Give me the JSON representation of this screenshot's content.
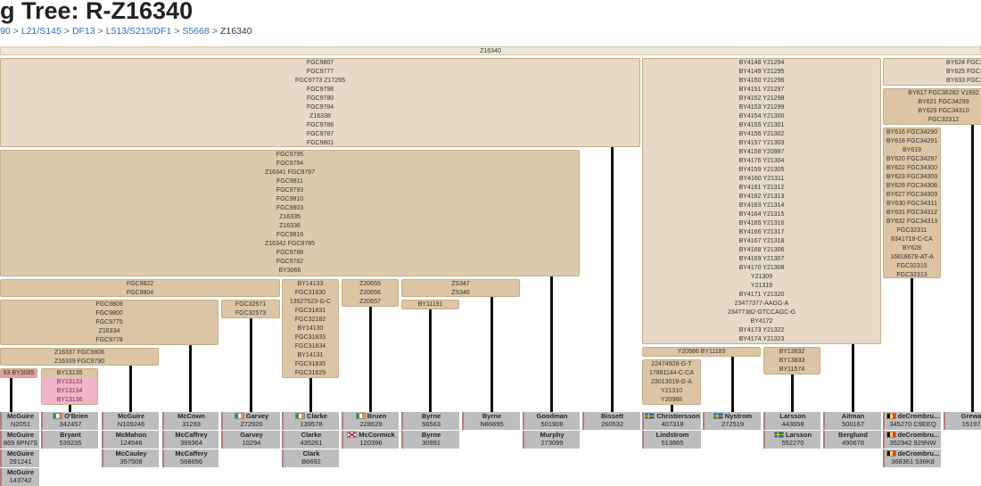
{
  "header": {
    "title": "g Tree: R-Z16340",
    "breadcrumb": [
      "90",
      "L21/S145",
      "DF13",
      "L513/S215/DF1",
      "S5668"
    ],
    "separator": ">",
    "current": "Z16340"
  },
  "tree": {
    "root": "Z16340",
    "nodes": [
      {
        "snps": [
          "FGC9807",
          "FGC9777",
          "FGC9773 Z17265",
          "FGC9798",
          "FGC9780",
          "FGC9784",
          "Z16338",
          "FGC9786",
          "FGC9787",
          "FGC9801"
        ]
      },
      {
        "snps": [
          "FGC9795",
          "FGC9794",
          "Z16341 FGC9797",
          "FGC9811",
          "FGC9793",
          "FGC9810",
          "FGC9803",
          "Z16335",
          "Z16336",
          "FGC9816",
          "Z16342 FGC9785",
          "FGC9788",
          "FGC9782",
          "BY3066"
        ]
      },
      {
        "snps": [
          "FGC9822",
          "FGC9804"
        ]
      },
      {
        "snps": [
          "FGC9809",
          "FGC9800",
          "FGC9775",
          "Z16334",
          "FGC9778"
        ]
      },
      {
        "snps": [
          "Z16337 FGC9808",
          "Z16339 FGC9790"
        ]
      },
      {
        "snps": [
          "93 BY3085"
        ]
      },
      {
        "snps": [
          "BY13135",
          "BY13133",
          "BY13134",
          "BY13136"
        ]
      },
      {
        "snps": [
          "FGC32571",
          "FGC32573"
        ]
      },
      {
        "snps": [
          "BY14133",
          "FGC31830",
          "13527523-G-C",
          "FGC31831",
          "FGC32182",
          "BY14130",
          "FGC31833",
          "FGC31834",
          "BY14131",
          "FGC31835",
          "FGC31829"
        ]
      },
      {
        "snps": [
          "Z20655",
          "Z20656",
          "Z20657"
        ]
      },
      {
        "snps": [
          "ZS347",
          "ZS346"
        ]
      },
      {
        "snps": [
          "BY11191"
        ]
      },
      {
        "snps": [
          "BY4148 Y21294",
          "BY4149 Y21295",
          "BY4150 Y21296",
          "BY4151 Y21297",
          "BY4152 Y21298",
          "BY4153 Y21299",
          "BY4154 Y21300",
          "BY4155 Y21301",
          "BY4156 Y21302",
          "BY4157 Y21303",
          "BY4158 Y20987",
          "BY4176 Y21304",
          "BY4159 Y21305",
          "BY4160 Y21311",
          "BY4161 Y21312",
          "BY4162 Y21313",
          "BY4163 Y21314",
          "BY4164 Y21315",
          "BY4165 Y21316",
          "BY4166 Y21317",
          "BY4167 Y21318",
          "BY4168 Y21306",
          "BY4169 Y21307",
          "BY4170 Y21308",
          "Y21309",
          "Y21319",
          "BY4171 Y21320",
          "23477377-AAGG-A",
          "23477382-GTCCAGC-G",
          "BY4172",
          "BY4173 Y21322",
          "BY4174 Y21323"
        ]
      },
      {
        "snps": [
          "Y20986 BY11183"
        ]
      },
      {
        "snps": [
          "22474928-G-T",
          "17881144-C-CA",
          "23013019-G-A",
          "Y21310",
          "Y20988"
        ]
      },
      {
        "snps": [
          "BY13832",
          "BY13833",
          "BY11574"
        ]
      },
      {
        "snps": [
          "BY624 FGC3",
          "BY625 FGC3",
          "BY633 FGC3"
        ]
      },
      {
        "snps": [
          "BY617 FGC36282 V1932",
          "BY621 FGC34299",
          "BY629 FGC34310",
          "FGC32312"
        ]
      },
      {
        "snps": [
          "BY616 FGC34290",
          "BY618 FGC34291",
          "BY619",
          "BY620 FGC34297",
          "BY622 FGC34300",
          "BY623 FGC34303",
          "BY626 FGC34308",
          "BY627 FGC34309",
          "BY630 FGC34311",
          "BY631 FGC34312",
          "BY632 FGC34313",
          "FGC32311",
          "8341718-C-CA",
          "BY628",
          "16818678-AT-A",
          "FGC32315",
          "FGC32313"
        ]
      }
    ],
    "leaves": [
      {
        "kits": [
          {
            "name": "McGuire",
            "id": "N2051"
          },
          {
            "name": "McGuire",
            "id": "869 6PN7S"
          },
          {
            "name": "McGuire",
            "id": "291241"
          },
          {
            "name": "McGuire",
            "id": "143742"
          }
        ]
      },
      {
        "kits": [
          {
            "name": "O'Brien",
            "id": "342457"
          },
          {
            "name": "Bryant",
            "id": "539235"
          }
        ]
      },
      {
        "kits": [
          {
            "name": "McGuire",
            "id": "N109246"
          },
          {
            "name": "McMahon",
            "id": "124546"
          },
          {
            "name": "McCauley",
            "id": "357508"
          }
        ]
      },
      {
        "kits": [
          {
            "name": "McCown",
            "id": "31293"
          },
          {
            "name": "McCaffrey",
            "id": "389364"
          },
          {
            "name": "McCaffery",
            "id": "568656"
          }
        ]
      },
      {
        "kits": [
          {
            "name": "Garvey",
            "id": "272920"
          },
          {
            "name": "Garvey",
            "id": "10294"
          }
        ]
      },
      {
        "kits": [
          {
            "name": "Clarke",
            "id": "139578"
          },
          {
            "name": "Clarke",
            "id": "435261"
          },
          {
            "name": "Clark",
            "id": "B6692"
          }
        ]
      },
      {
        "kits": [
          {
            "name": "Bruen",
            "id": "228629"
          },
          {
            "name": "McCormick",
            "id": "120396"
          }
        ]
      },
      {
        "kits": [
          {
            "name": "Byrne",
            "id": "56563"
          },
          {
            "name": "Byrne",
            "id": "30991"
          }
        ]
      },
      {
        "kits": [
          {
            "name": "Byrne",
            "id": "N86695"
          }
        ]
      },
      {
        "kits": [
          {
            "name": "Goodman",
            "id": "501906"
          },
          {
            "name": "Murphy",
            "id": "273099"
          }
        ]
      },
      {
        "kits": [
          {
            "name": "Bissett",
            "id": "260532"
          }
        ]
      },
      {
        "kits": [
          {
            "name": "Christiersson",
            "id": "407318"
          },
          {
            "name": "Lindstrom",
            "id": "513865"
          }
        ]
      },
      {
        "kits": [
          {
            "name": "Nystrom",
            "id": "272519"
          }
        ]
      },
      {
        "kits": [
          {
            "name": "Larsson",
            "id": "443658"
          },
          {
            "name": "Larsson",
            "id": "552270"
          }
        ]
      },
      {
        "kits": [
          {
            "name": "Aitman",
            "id": "500167"
          },
          {
            "name": "Berglund",
            "id": "490678"
          }
        ]
      },
      {
        "kits": [
          {
            "name": "deCrombru...",
            "id": "345270 C9EEQ"
          },
          {
            "name": "deCrombru...",
            "id": "352942 929NW"
          },
          {
            "name": "deCrombru...",
            "id": "368361 536K8"
          }
        ]
      },
      {
        "kits": [
          {
            "name": "Grewa",
            "id": "15197"
          }
        ]
      }
    ]
  }
}
